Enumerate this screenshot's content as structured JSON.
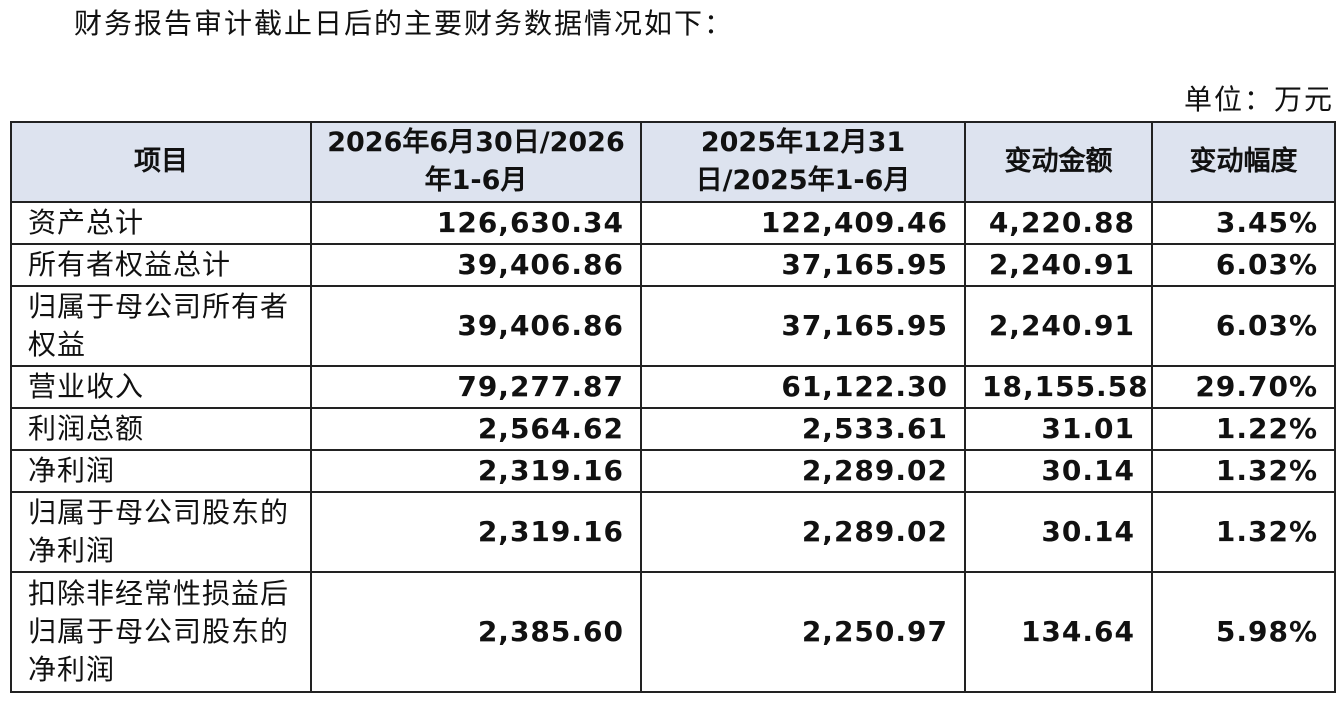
{
  "intro": "财务报告审计截止日后的主要财务数据情况如下：",
  "unit": "单位：万元",
  "table": {
    "headers": [
      "项目",
      "2026年6月30日/2026年1-6月",
      "2025年12月31日/2025年1-6月",
      "变动金额",
      "变动幅度"
    ],
    "rows": [
      {
        "label": "资产总计",
        "values": [
          "126,630.34",
          "122,409.46",
          "4,220.88",
          "3.45%"
        ]
      },
      {
        "label": "所有者权益总计",
        "values": [
          "39,406.86",
          "37,165.95",
          "2,240.91",
          "6.03%"
        ]
      },
      {
        "label": "归属于母公司所有者权益",
        "values": [
          "39,406.86",
          "37,165.95",
          "2,240.91",
          "6.03%"
        ]
      },
      {
        "label": "营业收入",
        "values": [
          "79,277.87",
          "61,122.30",
          "18,155.58",
          "29.70%"
        ]
      },
      {
        "label": "利润总额",
        "values": [
          "2,564.62",
          "2,533.61",
          "31.01",
          "1.22%"
        ]
      },
      {
        "label": "净利润",
        "values": [
          "2,319.16",
          "2,289.02",
          "30.14",
          "1.32%"
        ]
      },
      {
        "label": "归属于母公司股东的净利润",
        "values": [
          "2,319.16",
          "2,289.02",
          "30.14",
          "1.32%"
        ]
      },
      {
        "label": "扣除非经常性损益后归属于母公司股东的净利润",
        "values": [
          "2,385.60",
          "2,250.97",
          "134.64",
          "5.98%"
        ]
      }
    ]
  }
}
